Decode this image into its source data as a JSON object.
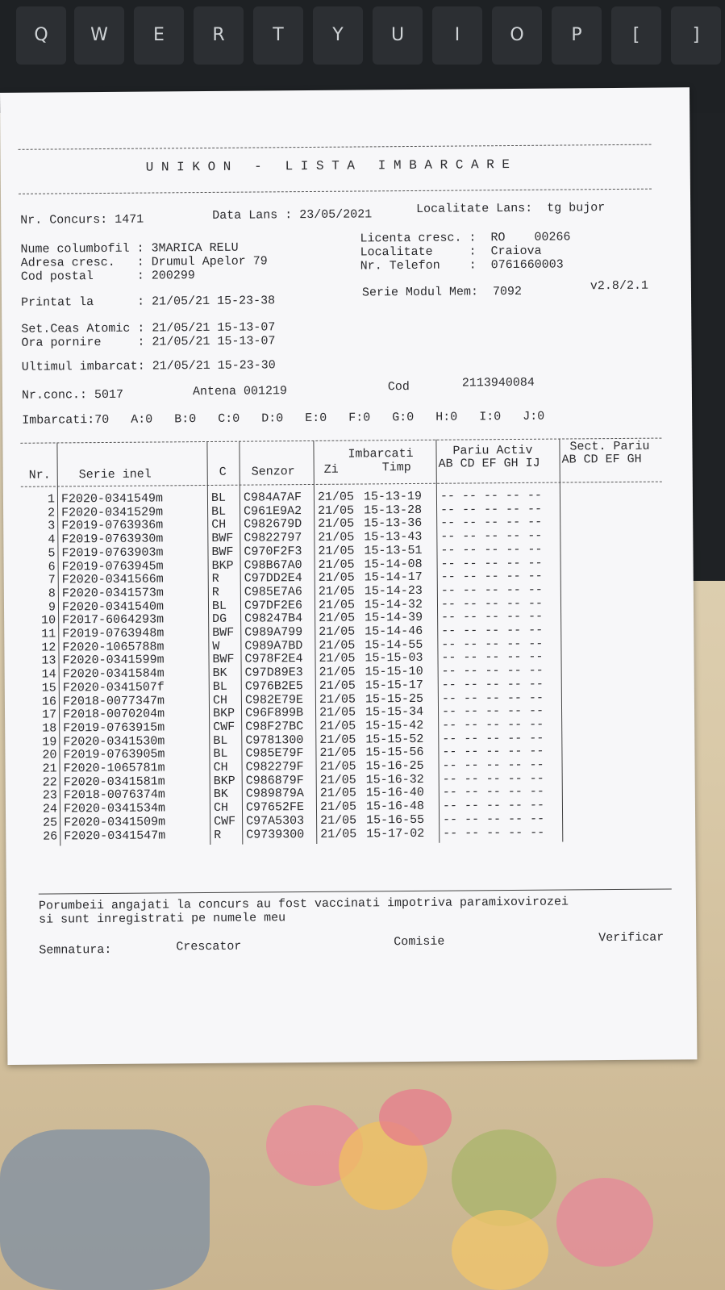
{
  "keyboard": {
    "keys": [
      "Q",
      "W",
      "E",
      "R",
      "T",
      "Y",
      "U",
      "I",
      "O",
      "P",
      "[",
      "]"
    ]
  },
  "header": {
    "title": "U N I K O N   -   L I S T A   I M B A R C A R E"
  },
  "info": {
    "nr_concurs": "Nr. Concurs: 1471",
    "data_lans": "Data Lans : 23/05/2021",
    "localitate_lans": "Localitate Lans:  tg bujor",
    "nume": "Nume columbofil : 3MARICA RELU",
    "adresa": "Adresa cresc.   : Drumul Apelor 79",
    "cod_postal": "Cod postal      : 200299",
    "licenta": "Licenta cresc. :  RO    00266",
    "localitate": "Localitate     :  Craiova",
    "telefon": "Nr. Telefon    :  0761660003",
    "printat": "Printat la      : 21/05/21 15-23-38",
    "serie_modul": "Serie Modul Mem:  7092",
    "versiune": "v2.8/2.1",
    "set_ceas": "Set.Ceas Atomic : 21/05/21 15-13-07",
    "ora_pornire": "Ora pornire     : 21/05/21 15-13-07",
    "ultimul": "Ultimul imbarcat: 21/05/21 15-23-30",
    "nr_conc": "Nr.conc.: 5017",
    "antena": "Antena 001219",
    "cod_label": "Cod",
    "cod": "2113940084",
    "imbarcati": "Imbarcati:70   A:0   B:0   C:0   D:0   E:0   F:0   G:0   H:0   I:0   J:0"
  },
  "table": {
    "headers": {
      "nr": "Nr.",
      "serie": "Serie inel",
      "c": "C",
      "senzor": "Senzor",
      "imbarcati": "Imbarcati",
      "zi": "Zi",
      "timp": "Timp",
      "pariu": "Pariu Activ",
      "pariu_cols": "AB CD EF GH IJ",
      "sect": "Sect. Pariu",
      "sect_cols": "AB CD EF GH"
    },
    "rows": [
      [
        "1",
        "F2020-0341549m",
        "BL",
        "C984A7AF",
        "21/05",
        "15-13-19",
        "-- -- -- -- --"
      ],
      [
        "2",
        "F2020-0341529m",
        "BL",
        "C961E9A2",
        "21/05",
        "15-13-28",
        "-- -- -- -- --"
      ],
      [
        "3",
        "F2019-0763936m",
        "CH",
        "C982679D",
        "21/05",
        "15-13-36",
        "-- -- -- -- --"
      ],
      [
        "4",
        "F2019-0763930m",
        "BWF",
        "C9822797",
        "21/05",
        "15-13-43",
        "-- -- -- -- --"
      ],
      [
        "5",
        "F2019-0763903m",
        "BWF",
        "C970F2F3",
        "21/05",
        "15-13-51",
        "-- -- -- -- --"
      ],
      [
        "6",
        "F2019-0763945m",
        "BKP",
        "C98B67A0",
        "21/05",
        "15-14-08",
        "-- -- -- -- --"
      ],
      [
        "7",
        "F2020-0341566m",
        "R",
        "C97DD2E4",
        "21/05",
        "15-14-17",
        "-- -- -- -- --"
      ],
      [
        "8",
        "F2020-0341573m",
        "R",
        "C985E7A6",
        "21/05",
        "15-14-23",
        "-- -- -- -- --"
      ],
      [
        "9",
        "F2020-0341540m",
        "BL",
        "C97DF2E6",
        "21/05",
        "15-14-32",
        "-- -- -- -- --"
      ],
      [
        "10",
        "F2017-6064293m",
        "DG",
        "C98247B4",
        "21/05",
        "15-14-39",
        "-- -- -- -- --"
      ],
      [
        "11",
        "F2019-0763948m",
        "BWF",
        "C989A799",
        "21/05",
        "15-14-46",
        "-- -- -- -- --"
      ],
      [
        "12",
        "F2020-1065788m",
        "W",
        "C989A7BD",
        "21/05",
        "15-14-55",
        "-- -- -- -- --"
      ],
      [
        "13",
        "F2020-0341599m",
        "BWF",
        "C978F2E4",
        "21/05",
        "15-15-03",
        "-- -- -- -- --"
      ],
      [
        "14",
        "F2020-0341584m",
        "BK",
        "C97D89E3",
        "21/05",
        "15-15-10",
        "-- -- -- -- --"
      ],
      [
        "15",
        "F2020-0341507f",
        "BL",
        "C976B2E5",
        "21/05",
        "15-15-17",
        "-- -- -- -- --"
      ],
      [
        "16",
        "F2018-0077347m",
        "CH",
        "C982E79E",
        "21/05",
        "15-15-25",
        "-- -- -- -- --"
      ],
      [
        "17",
        "F2018-0070204m",
        "BKP",
        "C96F899B",
        "21/05",
        "15-15-34",
        "-- -- -- -- --"
      ],
      [
        "18",
        "F2019-0763915m",
        "CWF",
        "C98F27BC",
        "21/05",
        "15-15-42",
        "-- -- -- -- --"
      ],
      [
        "19",
        "F2020-0341530m",
        "BL",
        "C9781300",
        "21/05",
        "15-15-52",
        "-- -- -- -- --"
      ],
      [
        "20",
        "F2019-0763905m",
        "BL",
        "C985E79F",
        "21/05",
        "15-15-56",
        "-- -- -- -- --"
      ],
      [
        "21",
        "F2020-1065781m",
        "CH",
        "C982279F",
        "21/05",
        "15-16-25",
        "-- -- -- -- --"
      ],
      [
        "22",
        "F2020-0341581m",
        "BKP",
        "C986879F",
        "21/05",
        "15-16-32",
        "-- -- -- -- --"
      ],
      [
        "23",
        "F2018-0076374m",
        "BK",
        "C989879A",
        "21/05",
        "15-16-40",
        "-- -- -- -- --"
      ],
      [
        "24",
        "F2020-0341534m",
        "CH",
        "C97652FE",
        "21/05",
        "15-16-48",
        "-- -- -- -- --"
      ],
      [
        "25",
        "F2020-0341509m",
        "CWF",
        "C97A5303",
        "21/05",
        "15-16-55",
        "-- -- -- -- --"
      ],
      [
        "26",
        "F2020-0341547m",
        "R",
        "C9739300",
        "21/05",
        "15-17-02",
        "-- -- -- -- --"
      ]
    ]
  },
  "footer": {
    "line1": "Porumbeii angajati la concurs au fost vaccinati impotriva paramixovirozei",
    "line2": "si sunt inregistrati pe numele meu",
    "semnatura": "Semnatura:",
    "crescator": "Crescator",
    "comisie": "Comisie",
    "verificar": "Verificar"
  }
}
